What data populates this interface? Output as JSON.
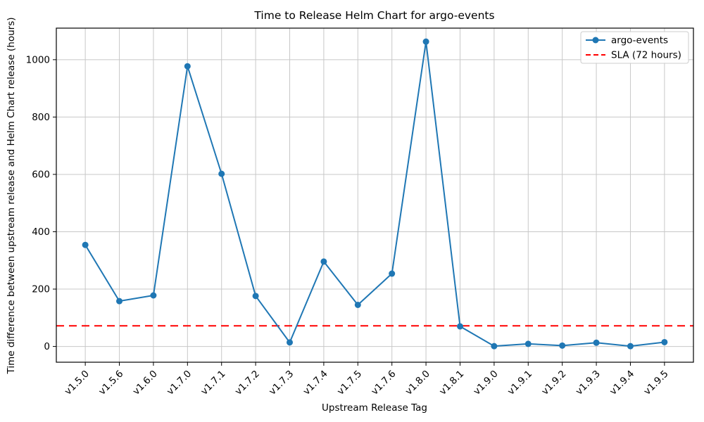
{
  "chart_data": {
    "type": "line",
    "title": "Time to Release Helm Chart for argo-events",
    "xlabel": "Upstream Release Tag",
    "ylabel": "Time difference between upstream release and Helm Chart release (hours)",
    "categories": [
      "v1.5.0",
      "v1.5.6",
      "v1.6.0",
      "v1.7.0",
      "v1.7.1",
      "v1.7.2",
      "v1.7.3",
      "v1.7.4",
      "v1.7.5",
      "v1.7.6",
      "v1.8.0",
      "v1.8.1",
      "v1.9.0",
      "v1.9.1",
      "v1.9.2",
      "v1.9.3",
      "v1.9.4",
      "v1.9.5"
    ],
    "series": [
      {
        "name": "argo-events",
        "color": "#1f77b4",
        "marker": "circle",
        "values": [
          354,
          158,
          178,
          977,
          602,
          176,
          14,
          296,
          145,
          254,
          1063,
          70,
          1,
          9,
          3,
          13,
          1,
          15
        ]
      }
    ],
    "sla": {
      "label": "SLA (72 hours)",
      "value": 72,
      "color": "#ff0000",
      "style": "dashed"
    },
    "yticks": [
      0,
      200,
      400,
      600,
      800,
      1000
    ],
    "ylim": [
      -55,
      1110
    ],
    "grid": true,
    "legend_position": "upper right"
  }
}
